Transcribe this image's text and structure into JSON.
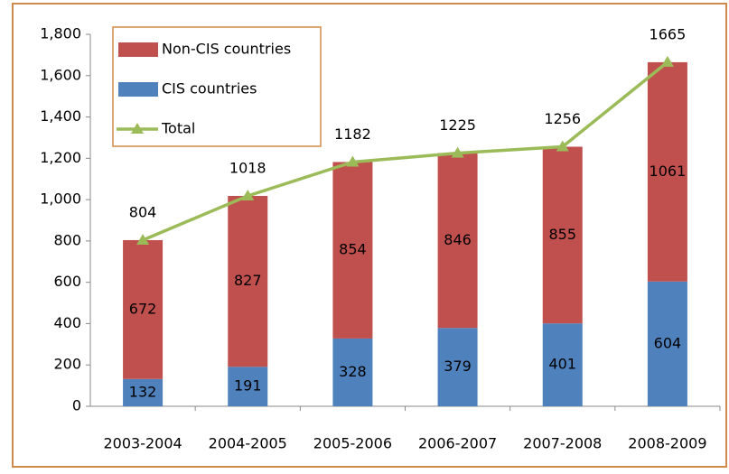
{
  "chart_data": {
    "type": "bar",
    "stacked": true,
    "categories": [
      "2003-2004",
      "2004-2005",
      "2005-2006",
      "2006-2007",
      "2007-2008",
      "2008-2009"
    ],
    "series": [
      {
        "name": "CIS countries",
        "color": "#4f81bd",
        "values": [
          132,
          191,
          328,
          379,
          401,
          604
        ]
      },
      {
        "name": "Non-CIS countries",
        "color": "#c0504d",
        "values": [
          672,
          827,
          854,
          846,
          855,
          1061
        ]
      },
      {
        "name": "Total",
        "type": "line",
        "color": "#9bbb59",
        "values": [
          804,
          1018,
          1182,
          1225,
          1256,
          1665
        ]
      }
    ],
    "ylim": [
      0,
      1800
    ],
    "yticks": [
      0,
      200,
      400,
      600,
      800,
      {
        "value": 1000,
        "label": "1,000"
      },
      {
        "value": 1200,
        "label": "1,200"
      },
      {
        "value": 1400,
        "label": "1,400"
      },
      {
        "value": 1600,
        "label": "1,600"
      },
      {
        "value": 1800,
        "label": "1,800"
      }
    ],
    "grid": false,
    "legend": "upper left"
  }
}
